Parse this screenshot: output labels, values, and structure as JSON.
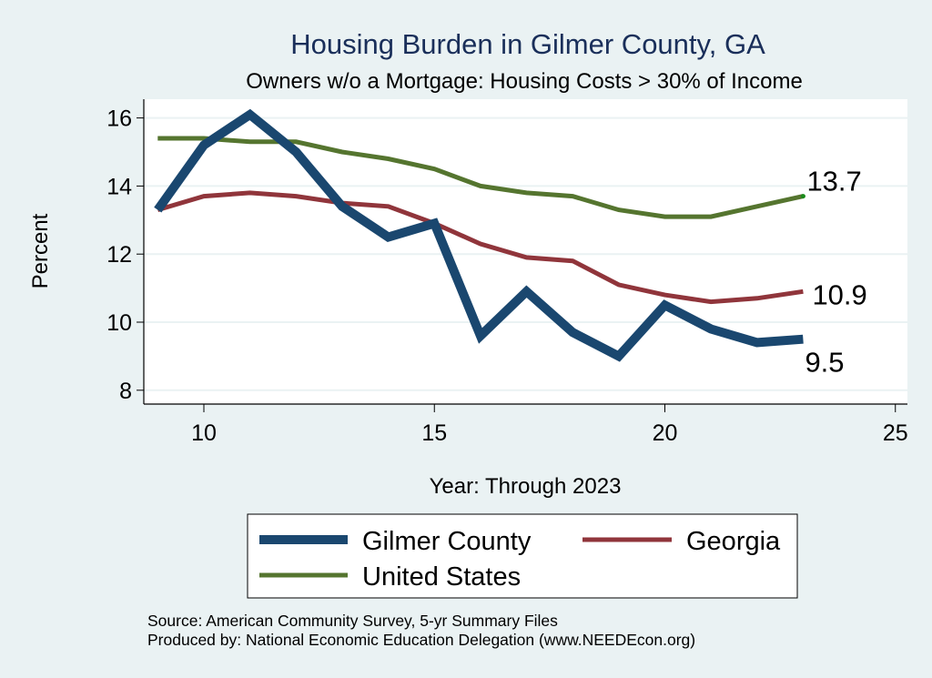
{
  "chart_data": {
    "type": "line",
    "title": "Housing Burden in Gilmer County, GA",
    "subtitle": "Owners w/o a Mortgage: Housing Costs > 30% of Income",
    "xlabel": "Year: Through 2023",
    "ylabel": "Percent",
    "xlim": [
      8.7,
      25.3
    ],
    "ylim": [
      7.6,
      16.5
    ],
    "xticks": [
      10,
      15,
      20,
      25
    ],
    "yticks": [
      8,
      10,
      12,
      14,
      16
    ],
    "grid": true,
    "x": [
      9,
      10,
      11,
      12,
      13,
      14,
      15,
      16,
      17,
      18,
      19,
      20,
      21,
      22,
      23
    ],
    "series": [
      {
        "name": "Gilmer County",
        "color": "#1a476f",
        "values": [
          13.3,
          15.2,
          16.1,
          15.0,
          13.4,
          12.5,
          12.9,
          9.6,
          10.9,
          9.7,
          9.0,
          10.5,
          9.8,
          9.4,
          9.5
        ],
        "end_label": "9.5"
      },
      {
        "name": "Georgia",
        "color": "#90353b",
        "values": [
          13.3,
          13.7,
          13.8,
          13.7,
          13.5,
          13.4,
          12.9,
          12.3,
          11.9,
          11.8,
          11.1,
          10.8,
          10.6,
          10.7,
          10.9
        ],
        "end_label": "10.9"
      },
      {
        "name": "United States",
        "color": "#55752f",
        "values": [
          15.4,
          15.4,
          15.3,
          15.3,
          15.0,
          14.8,
          14.5,
          14.0,
          13.8,
          13.7,
          13.3,
          13.1,
          13.1,
          13.4,
          13.7
        ],
        "end_label": "13.7"
      }
    ],
    "legend": {
      "position": "bottom",
      "entries": [
        "Gilmer County",
        "Georgia",
        "United States"
      ]
    },
    "notes": [
      "Source: American Community Survey, 5-yr Summary Files",
      "Produced by: National Economic Education Delegation (www.NEEDEcon.org)"
    ]
  }
}
